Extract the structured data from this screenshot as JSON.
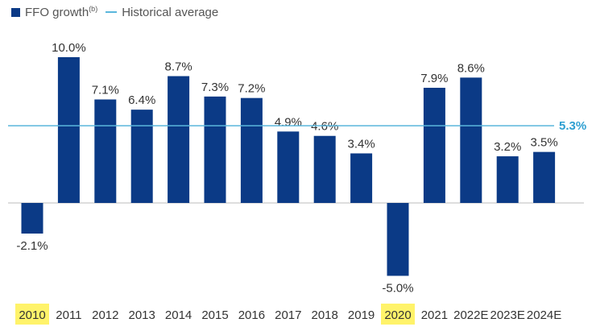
{
  "chart_data": {
    "type": "bar",
    "categories": [
      "2010",
      "2011",
      "2012",
      "2013",
      "2014",
      "2015",
      "2016",
      "2017",
      "2018",
      "2019",
      "2020",
      "2021",
      "2022E",
      "2023E",
      "2024E"
    ],
    "series": [
      {
        "name": "FFO growth",
        "values": [
          -2.1,
          10.0,
          7.1,
          6.4,
          8.7,
          7.3,
          7.2,
          4.9,
          4.6,
          3.4,
          -5.0,
          7.9,
          8.6,
          3.2,
          3.5
        ]
      }
    ],
    "value_labels": [
      "-2.1%",
      "10.0%",
      "7.1%",
      "6.4%",
      "8.7%",
      "7.3%",
      "7.2%",
      "4.9%",
      "4.6%",
      "3.4%",
      "-5.0%",
      "7.9%",
      "8.6%",
      "3.2%",
      "3.5%"
    ],
    "highlighted_categories": [
      "2010",
      "2020"
    ],
    "reference_line": {
      "name": "Historical average",
      "value": 5.3,
      "label": "5.3%"
    },
    "legend": {
      "bar_label": "FFO growth",
      "bar_superscript": "(b)",
      "line_label": "Historical average",
      "placement": "top-left"
    },
    "ylim": [
      -6.5,
      10.5
    ],
    "grid": false,
    "colors": {
      "bar": "#0b3a86",
      "avg_line": "#5ab6dc",
      "avg_label": "#2e9fd1",
      "highlight": "#fff36a",
      "axis": "#bbbbbb"
    }
  }
}
